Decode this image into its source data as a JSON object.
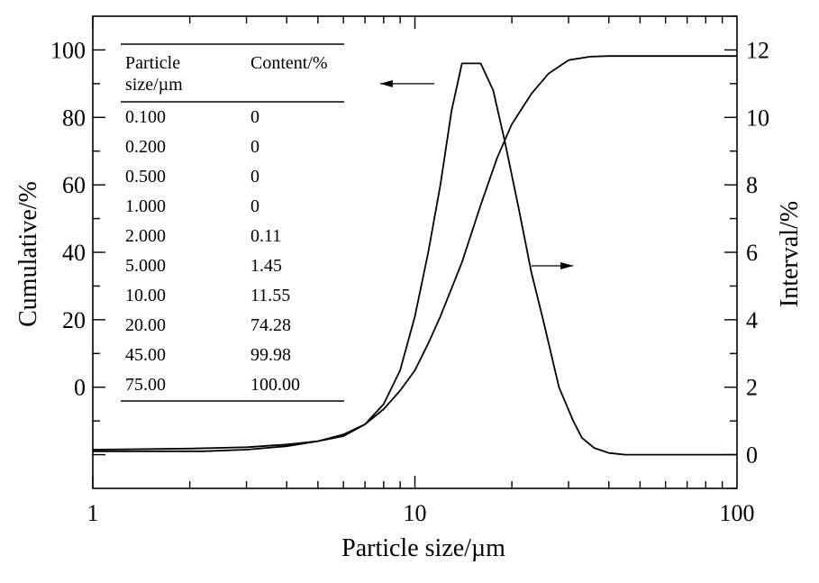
{
  "chart_data": {
    "type": "line",
    "xlabel": "Particle size/µm",
    "ylabel_left": "Cumulative/%",
    "ylabel_right": "Interval/%",
    "x_scale": "log",
    "xlim": [
      1,
      100
    ],
    "ylim_left": [
      -30,
      110
    ],
    "ylim_right": [
      -1,
      13
    ],
    "x_ticks": [
      1,
      10,
      100
    ],
    "y_left_ticks": [
      0,
      20,
      40,
      60,
      80,
      100
    ],
    "y_right_ticks": [
      0,
      2,
      4,
      6,
      8,
      10,
      12
    ],
    "series": [
      {
        "axis": "right",
        "points": [
          [
            1,
            0.15
          ],
          [
            2,
            0.18
          ],
          [
            3,
            0.22
          ],
          [
            4,
            0.3
          ],
          [
            5,
            0.4
          ],
          [
            6,
            0.55
          ],
          [
            7,
            0.9
          ],
          [
            8,
            1.5
          ],
          [
            9,
            2.5
          ],
          [
            10,
            4.1
          ],
          [
            11,
            6.0
          ],
          [
            12,
            8.0
          ],
          [
            13,
            10.2
          ],
          [
            14,
            11.6
          ],
          [
            16,
            11.6
          ],
          [
            17.5,
            10.8
          ],
          [
            19,
            9.3
          ],
          [
            21,
            7.3
          ],
          [
            23,
            5.4
          ],
          [
            25,
            4.0
          ],
          [
            28,
            2.0
          ],
          [
            31,
            1.0
          ],
          [
            33,
            0.5
          ],
          [
            36,
            0.2
          ],
          [
            40,
            0.05
          ],
          [
            45,
            0.0
          ],
          [
            100,
            0.0
          ]
        ]
      },
      {
        "axis": "left",
        "points": [
          [
            1,
            -19
          ],
          [
            2.2,
            -19
          ],
          [
            3,
            -18.5
          ],
          [
            4,
            -17.5
          ],
          [
            5,
            -16
          ],
          [
            6,
            -14
          ],
          [
            7,
            -11
          ],
          [
            8,
            -6.5
          ],
          [
            9,
            -1
          ],
          [
            10,
            5
          ],
          [
            11,
            13
          ],
          [
            12,
            21
          ],
          [
            14,
            37
          ],
          [
            16,
            54
          ],
          [
            18,
            68
          ],
          [
            20,
            78
          ],
          [
            23,
            87
          ],
          [
            26,
            93
          ],
          [
            30,
            97
          ],
          [
            35,
            98
          ],
          [
            40,
            98.2
          ],
          [
            100,
            98.2
          ]
        ]
      }
    ],
    "annotations": [
      {
        "direction": "left",
        "from": [
          11.5,
          11
        ],
        "to": [
          7.8,
          11
        ]
      },
      {
        "direction": "right",
        "from": [
          23,
          5.6
        ],
        "to": [
          31,
          5.6
        ]
      }
    ],
    "table": {
      "headers": [
        "Particle\nsize/µm",
        "Content/%"
      ],
      "header_lines": [
        [
          "Particle",
          "size/µm"
        ],
        [
          "Content/%"
        ]
      ],
      "rows": [
        [
          "0.100",
          "0"
        ],
        [
          "0.200",
          "0"
        ],
        [
          "0.500",
          "0"
        ],
        [
          "1.000",
          "0"
        ],
        [
          "2.000",
          "0.11"
        ],
        [
          "5.000",
          "1.45"
        ],
        [
          "10.00",
          "11.55"
        ],
        [
          "20.00",
          "74.28"
        ],
        [
          "45.00",
          "99.98"
        ],
        [
          "75.00",
          "100.00"
        ]
      ]
    }
  }
}
